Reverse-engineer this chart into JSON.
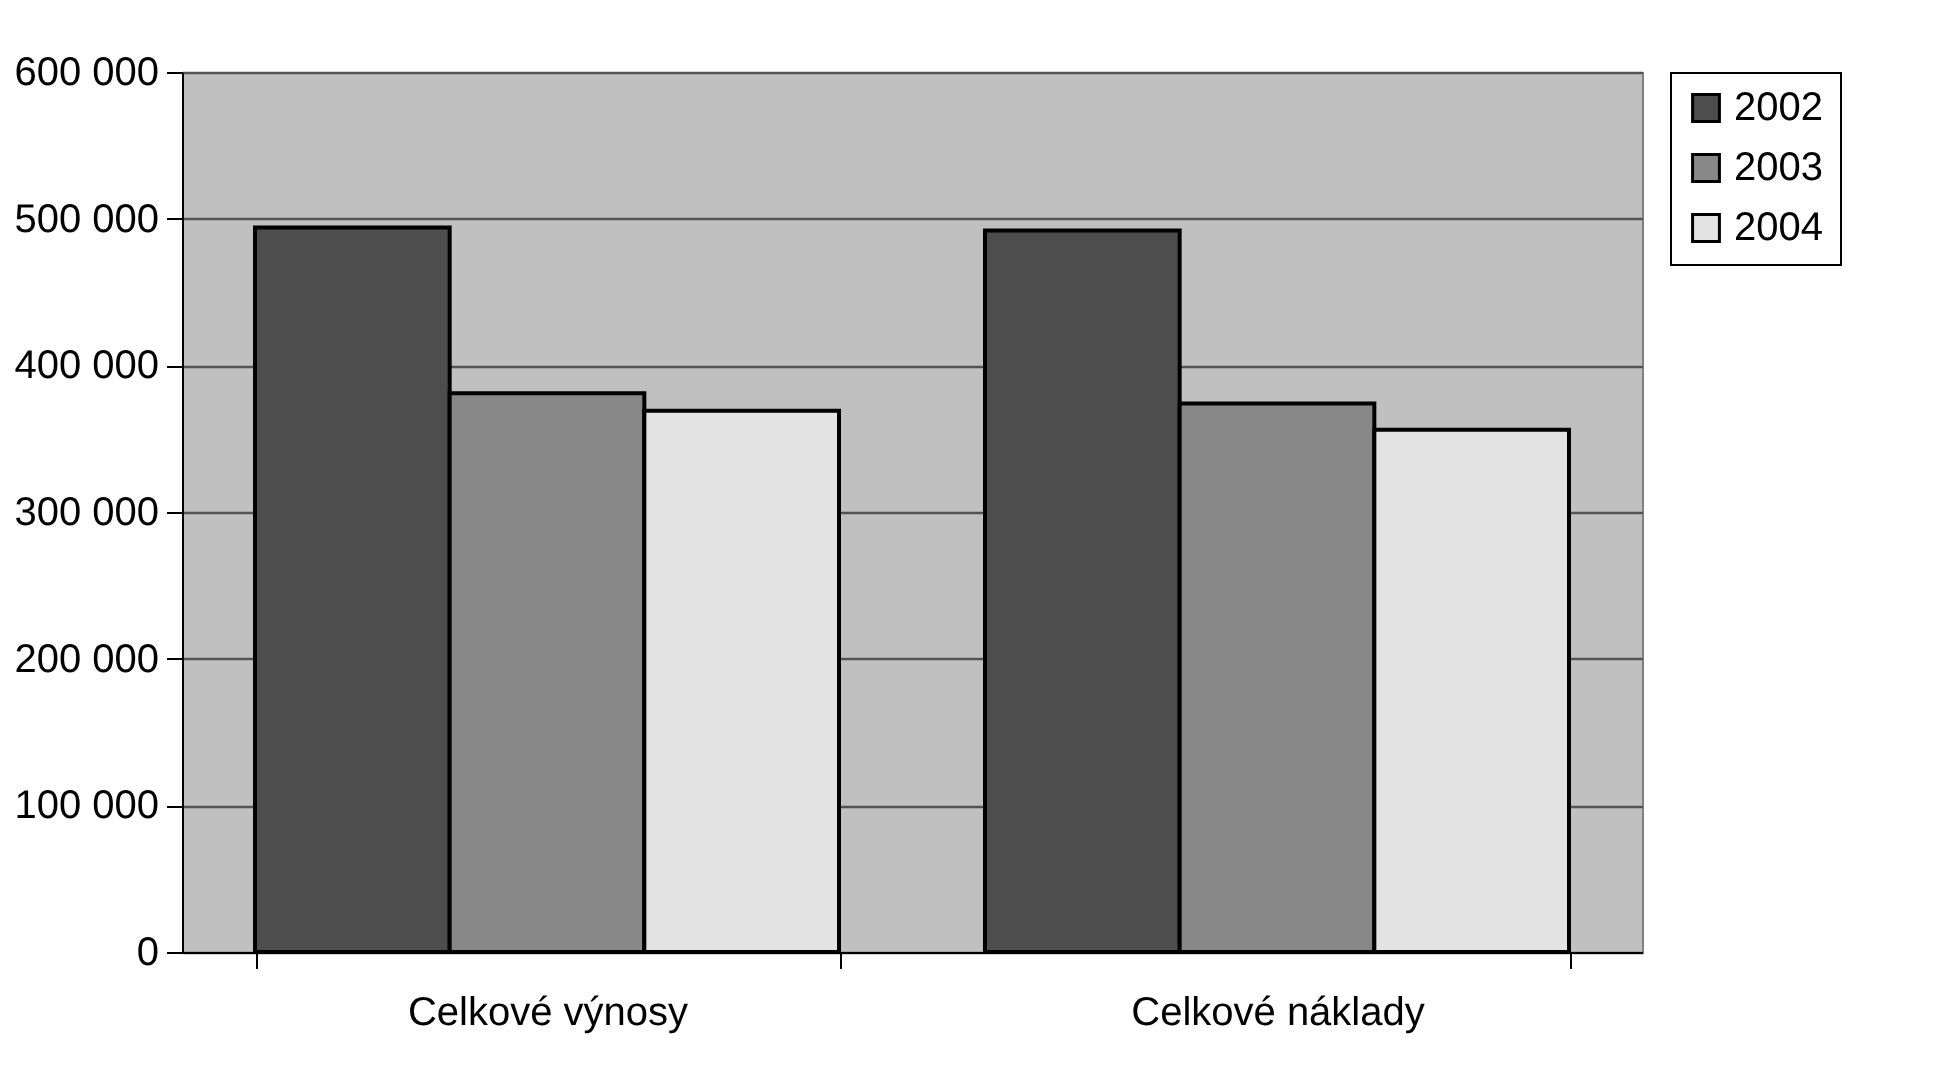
{
  "chart_data": {
    "type": "bar",
    "categories": [
      "Celkové výnosy",
      "Celkové náklady"
    ],
    "series": [
      {
        "name": "2002",
        "color": "#4d4d4d",
        "values": [
          494000,
          492000
        ]
      },
      {
        "name": "2003",
        "color": "#888888",
        "values": [
          381000,
          374000
        ]
      },
      {
        "name": "2004",
        "color": "#e3e3e3",
        "values": [
          369000,
          356000
        ]
      }
    ],
    "ylim": [
      0,
      600000
    ],
    "yticks": [
      {
        "value": 0,
        "label": "0"
      },
      {
        "value": 100000,
        "label": "100 000"
      },
      {
        "value": 200000,
        "label": "200 000"
      },
      {
        "value": 300000,
        "label": "300 000"
      },
      {
        "value": 400000,
        "label": "400 000"
      },
      {
        "value": 500000,
        "label": "500 000"
      },
      {
        "value": 600000,
        "label": "600 000"
      }
    ],
    "grid": "y",
    "legend": "right"
  }
}
